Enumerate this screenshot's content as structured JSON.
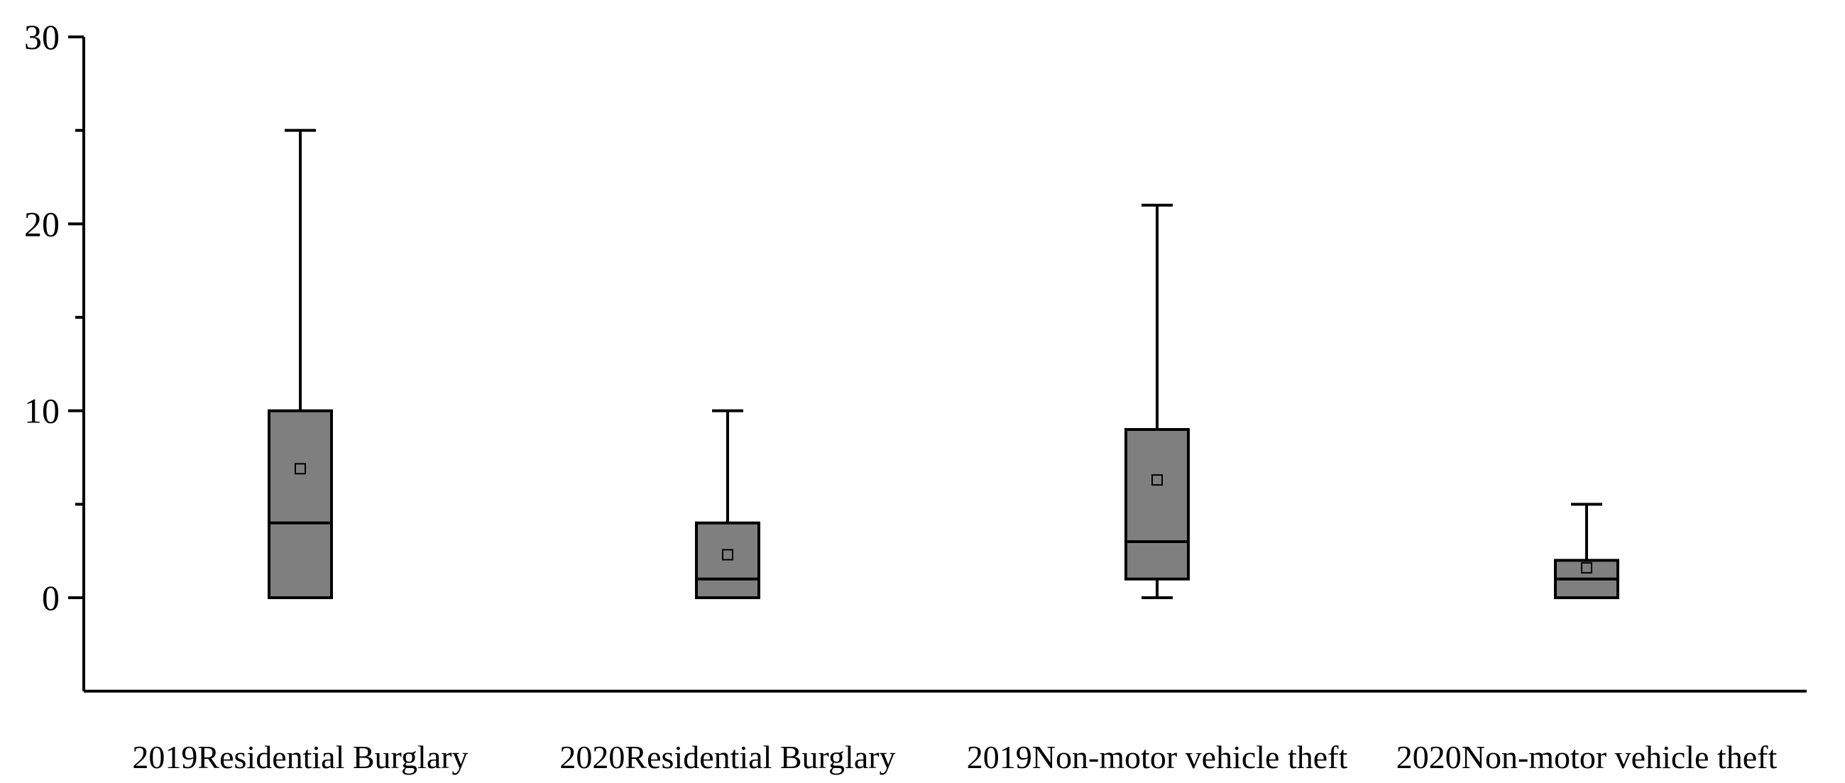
{
  "chart_data": {
    "type": "box",
    "title": "",
    "xlabel": "",
    "ylabel": "",
    "ylim": [
      -5,
      30
    ],
    "yticks": [
      0,
      10,
      20,
      30
    ],
    "yminor_ticks": [
      5,
      15,
      25
    ],
    "grid": false,
    "categories": [
      "2019Residential Burglary",
      "2020Residential Burglary",
      "2019Non-motor vehicle theft",
      "2020Non-motor vehicle theft"
    ],
    "series": [
      {
        "category": "2019Residential Burglary",
        "whisker_low": 0,
        "q1": 0,
        "median": 4,
        "q3": 10,
        "whisker_high": 25,
        "mean": 6.9
      },
      {
        "category": "2020Residential Burglary",
        "whisker_low": 0,
        "q1": 0,
        "median": 1,
        "q3": 4,
        "whisker_high": 10,
        "mean": 2.3
      },
      {
        "category": "2019Non-motor vehicle theft",
        "whisker_low": 0,
        "q1": 1,
        "median": 3,
        "q3": 9,
        "whisker_high": 21,
        "mean": 6.3
      },
      {
        "category": "2020Non-motor vehicle theft",
        "whisker_low": 0,
        "q1": 0,
        "median": 1,
        "q3": 2,
        "whisker_high": 5,
        "mean": 1.6
      }
    ],
    "colors": {
      "box_fill": "#7f7f7f",
      "stroke": "#000000",
      "mean_marker_stroke": "#000000",
      "background": "#ffffff"
    }
  }
}
